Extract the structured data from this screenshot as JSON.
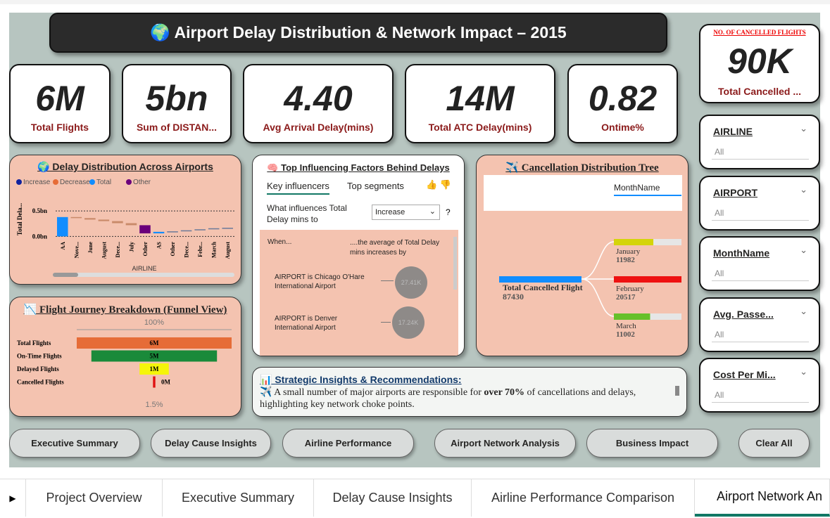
{
  "header": {
    "title": "🌍 Airport Delay Distribution & Network Impact – 2015"
  },
  "kpis": [
    {
      "value": "6M",
      "label": "Total Flights"
    },
    {
      "value": "5bn",
      "label": "Sum of DISTAN..."
    },
    {
      "value": "4.40",
      "label": "Avg Arrival Delay(mins)"
    },
    {
      "value": "14M",
      "label": "Total ATC Delay(mins)"
    },
    {
      "value": "0.82",
      "label": "Ontime%"
    }
  ],
  "cancelled_card": {
    "heading": "NO. OF CANCELLED FLIGHTS",
    "value": "90K",
    "label": "Total Cancelled ..."
  },
  "slicers": [
    {
      "title": "AIRLINE",
      "value": "All"
    },
    {
      "title": "AIRPORT",
      "value": "All"
    },
    {
      "title": "MonthName",
      "value": "All"
    },
    {
      "title": "Avg. Passe...",
      "value": "All"
    },
    {
      "title": "Cost Per Mi...",
      "value": "All"
    }
  ],
  "waterfall": {
    "title": "🌍 Delay Distribution Across Airports",
    "legend": [
      {
        "name": "Increase",
        "color": "#12239e"
      },
      {
        "name": "Decrease",
        "color": "#e66c37"
      },
      {
        "name": "Total",
        "color": "#118dff"
      },
      {
        "name": "Other",
        "color": "#6b007b"
      }
    ],
    "y_label": "Total Dela...",
    "x_label": "AIRLINE",
    "ylim": [
      -0.05,
      0.75
    ],
    "yticks": [
      {
        "value": 0.5,
        "label": "0.5bn"
      },
      {
        "value": 0,
        "label": "0.0bn"
      }
    ],
    "categories": [
      "AA",
      "Nove...",
      "June",
      "August",
      "Dece...",
      "July",
      "Other",
      "AS",
      "Other",
      "Dece...",
      "Febr...",
      "March",
      "August"
    ],
    "values": [
      0.38,
      -0.02,
      -0.03,
      -0.03,
      -0.04,
      -0.04,
      -0.16,
      0.03,
      0.01,
      0.02,
      0.02,
      0.02,
      0.01
    ],
    "colors": [
      "#118dff",
      "#c98a6a",
      "#c98a6a",
      "#c98a6a",
      "#c98a6a",
      "#c98a6a",
      "#6b007b",
      "#118dff",
      "#6b7a99",
      "#6b7a99",
      "#6b7a99",
      "#6b7a99",
      "#6b7a99"
    ]
  },
  "influencers": {
    "title": "🧠 Top Influencing Factors Behind Delays",
    "tabs": [
      "Key influencers",
      "Top segments"
    ],
    "question": "What influences Total Delay mins to",
    "dropdown": "Increase",
    "help": "?",
    "when": "When...",
    "average": "....the average of Total Delay mins increases by",
    "items": [
      {
        "text": "AIRPORT is Chicago O'Hare International Airport",
        "value": "27.41K"
      },
      {
        "text": "AIRPORT is Denver International Airport",
        "value": "17.24K"
      }
    ]
  },
  "funnel": {
    "title": "📉 Flight Journey Breakdown (Funnel View)",
    "top_label": "100%",
    "bottom_label": "1.5%",
    "stages": [
      {
        "name": "Total Flights",
        "value": 5.82,
        "label": "6M",
        "color": "#e66c37"
      },
      {
        "name": "On-Time Flights",
        "value": 4.72,
        "label": "5M",
        "color": "#1a8a3a"
      },
      {
        "name": "Delayed Flights",
        "value": 1.1,
        "label": "1M",
        "color": "#f5f50a"
      },
      {
        "name": "Cancelled Flights",
        "value": 0.09,
        "label": "0M",
        "color": "#e01010"
      }
    ]
  },
  "tree": {
    "title": "✈️ Cancellation Distribution Tree",
    "level": "MonthName",
    "root": {
      "name": "Total Cancelled Flight",
      "value": 87430,
      "color": "#118dff"
    },
    "children": [
      {
        "name": "January",
        "value": 11982,
        "color": "#d4d40a"
      },
      {
        "name": "February",
        "value": 20517,
        "color": "#ee1111"
      },
      {
        "name": "March",
        "value": 11002,
        "color": "#66c02a"
      }
    ]
  },
  "insights": {
    "title": "📊 Strategic Insights & Recommendations:",
    "text_start": "✈️ A small number of major airports are responsible for ",
    "text_bold": "over 70%",
    "text_end": " of cancellations and delays, highlighting key network choke points."
  },
  "nav_buttons": [
    "Executive Summary",
    "Delay Cause Insights",
    "Airline Performance",
    "Airport Network Analysis",
    "Business Impact",
    "Clear All"
  ],
  "tabs": [
    "Project Overview",
    "Executive Summary",
    "Delay Cause Insights",
    "Airline Performance Comparison",
    "Airport Network An"
  ]
}
